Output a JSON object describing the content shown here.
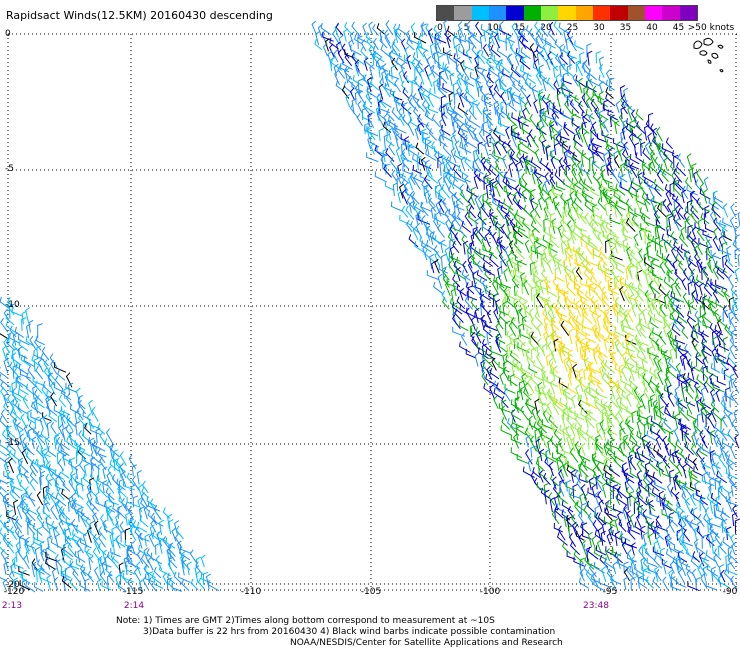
{
  "title": "Rapidsact Winds(12.5KM) 20160430 descending",
  "legend": {
    "colors": [
      "#4d4d4d",
      "#9c9c9c",
      "#00bfff",
      "#1e90ff",
      "#0000d0",
      "#00b000",
      "#90ee40",
      "#ffd700",
      "#ffa500",
      "#ff3000",
      "#c00000",
      "#a0522d",
      "#ff00ff",
      "#cc00cc",
      "#8000c0"
    ],
    "ticks": [
      "0",
      "5",
      "10",
      "15",
      "20",
      "25",
      "30",
      "35",
      "40",
      "45",
      ">50 knots"
    ]
  },
  "lat_labels": [
    "0",
    "-5",
    "-10",
    "-15",
    "-20"
  ],
  "lon_labels": [
    "-120",
    "-115",
    "-110",
    "-105",
    "-100",
    "-95",
    "-90"
  ],
  "time_labels": [
    "2:13",
    "2:14",
    "23:48"
  ],
  "notes": {
    "line1": "Note: 1) Times are GMT 2)Times along bottom correspond to measurement at ~10S",
    "line2": "3)Data buffer is 22 hrs from 20160430 4) Black wind barbs indicate possible contamination",
    "line3": "NOAA/NESDIS/Center for Satellite Applications and Research"
  }
}
